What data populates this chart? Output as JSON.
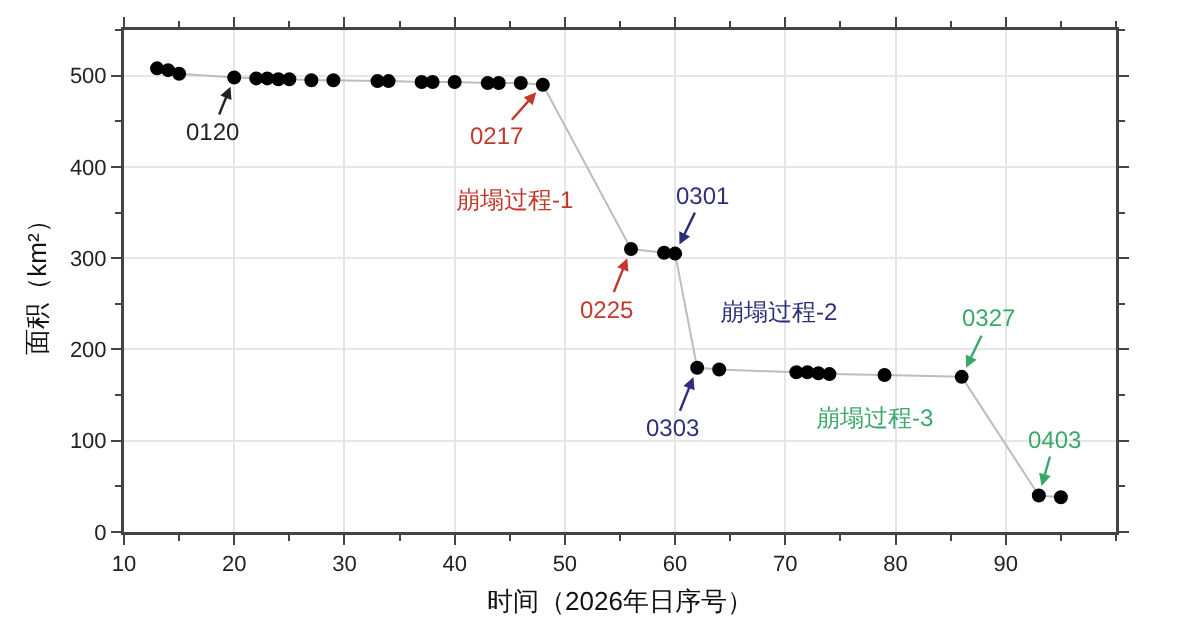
{
  "chart_data": {
    "type": "line",
    "xlabel": "时间（2026年日序号）",
    "ylabel": "面积（km²）",
    "xlim": [
      10,
      100
    ],
    "xticks": [
      10,
      20,
      30,
      40,
      50,
      60,
      70,
      80,
      90
    ],
    "ylim": [
      0,
      550
    ],
    "yticks": [
      0,
      100,
      200,
      300,
      400,
      500
    ],
    "grid": true,
    "marker": "circle",
    "line_style": "solid",
    "series": [
      {
        "color": "#bdbdbd",
        "colors": [
          "#000000",
          "#000000",
          "#000000",
          "#000000",
          "#000000",
          "#000000",
          "#000000",
          "#000000",
          "#000000",
          "#000000",
          "#000000",
          "#000000",
          "#000000",
          "#000000",
          "#000000",
          "#000000",
          "#000000",
          "#000000",
          "#000000",
          "#000000",
          "#000000",
          "#000000",
          "#000000",
          "#000000",
          "#000000",
          "#000000",
          "#000000",
          "#000000",
          "#000000",
          "#000000",
          "#000000",
          "#000000"
        ],
        "x": [
          13,
          14,
          15,
          20,
          22,
          23,
          24,
          25,
          27,
          29,
          33,
          34,
          37,
          38,
          40,
          43,
          44,
          46,
          48,
          56,
          59,
          60,
          62,
          64,
          71,
          72,
          73,
          74,
          79,
          86,
          93,
          95
        ],
        "values": [
          508,
          506,
          502,
          498,
          497,
          497,
          496,
          496,
          495,
          495,
          494,
          494,
          493,
          493,
          493,
          492,
          492,
          492,
          490,
          310,
          306,
          305,
          180,
          178,
          175,
          175,
          174,
          173,
          172,
          170,
          40,
          38
        ]
      }
    ],
    "annotations": [
      {
        "text": "0120",
        "x": 20,
        "y": 498
      },
      {
        "text": "0217",
        "x": 48,
        "y": 490
      },
      "崩塌过程-1",
      {
        "text": "0225",
        "x": 56,
        "y": 310
      },
      {
        "text": "0301",
        "x": 60,
        "y": 305
      },
      "崩塌过程-2",
      {
        "text": "0303",
        "x": 62,
        "y": 180
      },
      {
        "text": "0327",
        "x": 86,
        "y": 170
      },
      "崩塌过程-3",
      {
        "text": "0403",
        "x": 93,
        "y": 40
      }
    ]
  }
}
